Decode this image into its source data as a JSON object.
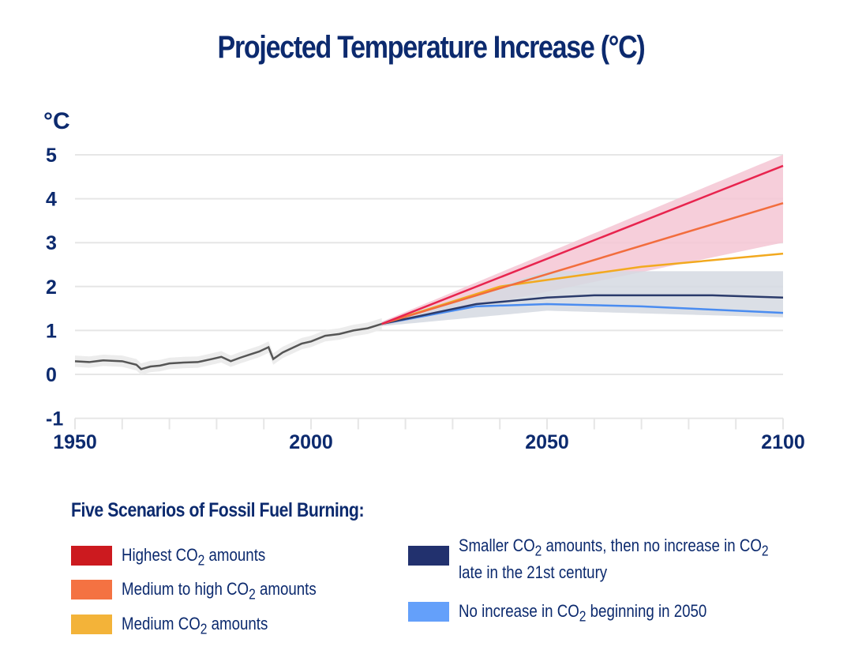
{
  "chart_data": {
    "type": "line",
    "title": "Projected Temperature Increase (°C)",
    "ylabel": "°C",
    "xlim": [
      1950,
      2100
    ],
    "ylim": [
      -1,
      5
    ],
    "xticks": [
      1950,
      2000,
      2050,
      2100
    ],
    "yticks": [
      5,
      4,
      3,
      2,
      1,
      0,
      -1
    ],
    "grid": true,
    "historical": {
      "color": "#555555",
      "x": [
        1950,
        1953,
        1956,
        1960,
        1963,
        1964,
        1966,
        1968,
        1970,
        1973,
        1976,
        1979,
        1981,
        1983,
        1985,
        1987,
        1989,
        1991,
        1992,
        1994,
        1996,
        1998,
        2000,
        2003,
        2006,
        2009,
        2012,
        2015
      ],
      "y": [
        0.3,
        0.28,
        0.32,
        0.3,
        0.22,
        0.12,
        0.18,
        0.2,
        0.25,
        0.27,
        0.28,
        0.35,
        0.4,
        0.3,
        0.38,
        0.45,
        0.52,
        0.62,
        0.35,
        0.5,
        0.6,
        0.7,
        0.75,
        0.88,
        0.92,
        1.0,
        1.05,
        1.15
      ]
    },
    "bands": [
      {
        "color": "#f5c6d3",
        "x": [
          2015,
          2100
        ],
        "upper": [
          1.2,
          5.0
        ],
        "lower": [
          1.1,
          3.0
        ]
      },
      {
        "color": "#d5d9e2",
        "x": [
          2015,
          2050,
          2100
        ],
        "upper": [
          1.2,
          2.35,
          2.35
        ],
        "lower": [
          1.1,
          1.45,
          1.3
        ]
      }
    ],
    "series": [
      {
        "name": "Highest CO2 amounts",
        "color": "#e8244e",
        "x": [
          2015,
          2100
        ],
        "y": [
          1.15,
          4.75
        ]
      },
      {
        "name": "Medium to high CO2 amounts",
        "color": "#f26d3d",
        "x": [
          2015,
          2100
        ],
        "y": [
          1.15,
          3.9
        ]
      },
      {
        "name": "Medium CO2 amounts",
        "color": "#f2a91f",
        "x": [
          2015,
          2040,
          2070,
          2100
        ],
        "y": [
          1.15,
          2.0,
          2.45,
          2.75
        ]
      },
      {
        "name": "Smaller CO2 amounts, then no increase in CO2 late in the 21st century",
        "color": "#2b3b6b",
        "x": [
          2015,
          2035,
          2050,
          2060,
          2085,
          2100
        ],
        "y": [
          1.15,
          1.6,
          1.75,
          1.8,
          1.8,
          1.75
        ]
      },
      {
        "name": "No increase in CO2 beginning in 2050",
        "color": "#4a8cf0",
        "x": [
          2015,
          2035,
          2050,
          2070,
          2100
        ],
        "y": [
          1.15,
          1.55,
          1.6,
          1.55,
          1.4
        ]
      }
    ]
  },
  "legend": {
    "title": "Five Scenarios of Fossil Fuel Burning:",
    "items": [
      {
        "pre": "Highest CO",
        "sub": "2",
        "post": " amounts",
        "color": "#cc1a1f"
      },
      {
        "pre": "Medium to high CO",
        "sub": "2",
        "post": " amounts",
        "color": "#f47242"
      },
      {
        "pre": "Medium CO",
        "sub": "2",
        "post": " amounts",
        "color": "#f3b339"
      },
      {
        "pre": "Smaller CO",
        "sub": "2",
        "post": " amounts, then no increase in CO",
        "sub2": "2",
        "line2": "late in the 21st century",
        "color": "#22316e"
      },
      {
        "pre": "No increase in CO",
        "sub": "2",
        "post": " beginning in 2050",
        "color": "#64a0fa"
      }
    ]
  }
}
